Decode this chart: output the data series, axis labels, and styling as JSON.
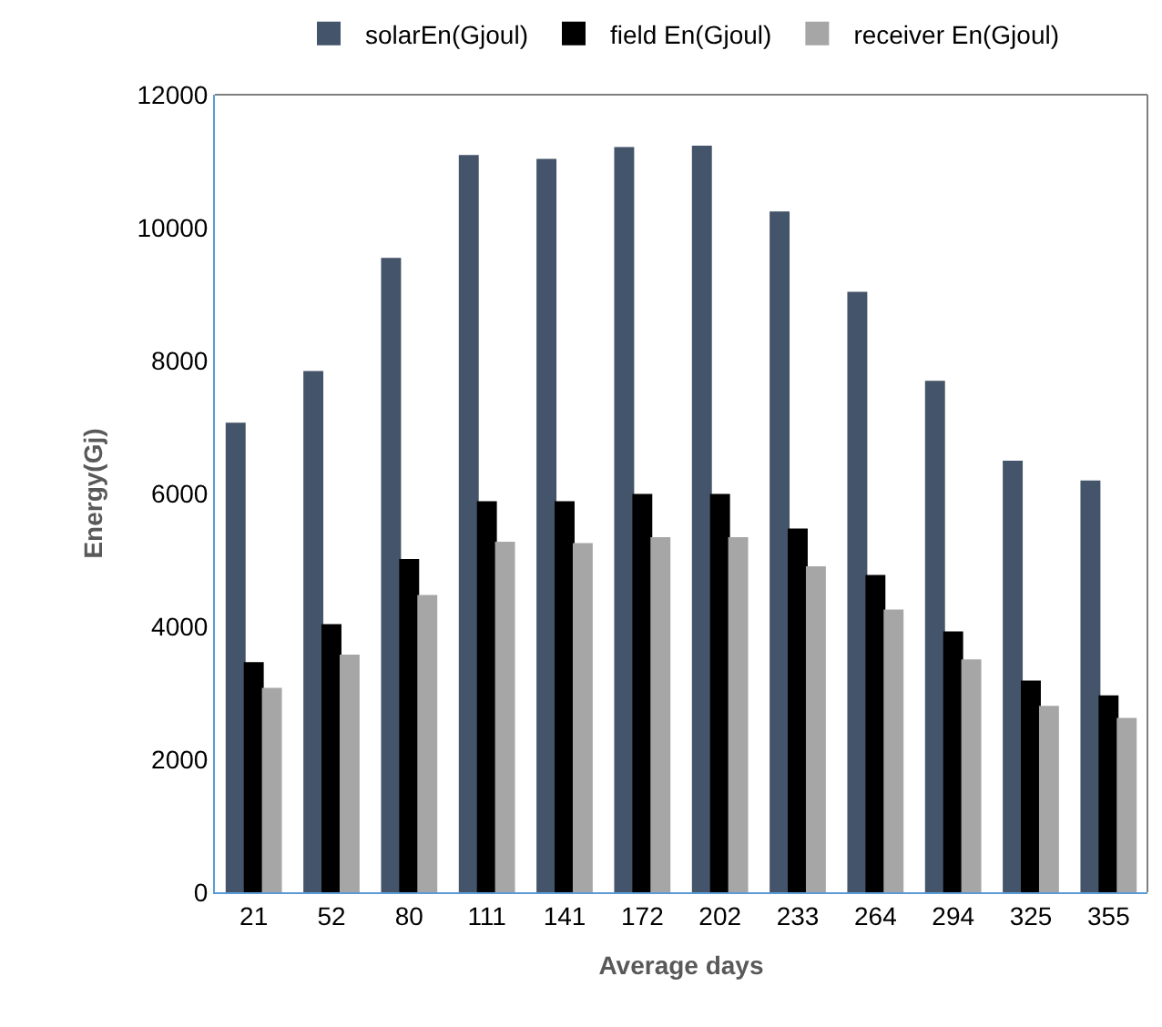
{
  "chart_data": {
    "type": "bar",
    "xlabel": "Average days",
    "ylabel": "Energy(Gj)",
    "categories": [
      "21",
      "52",
      "80",
      "111",
      "141",
      "172",
      "202",
      "233",
      "264",
      "294",
      "325",
      "355"
    ],
    "series": [
      {
        "name": "solarEn(Gjoul)",
        "color": "#44546a",
        "values": [
          7050,
          7830,
          9530,
          11080,
          11020,
          11200,
          11220,
          10230,
          9020,
          7680,
          6480,
          6180
        ]
      },
      {
        "name": "field En(Gjoul)",
        "color": "#000000",
        "values": [
          3450,
          4020,
          5000,
          5870,
          5870,
          5980,
          5980,
          5460,
          4760,
          3910,
          3170,
          2950
        ]
      },
      {
        "name": "receiver En(Gjoul)",
        "color": "#a6a6a6",
        "values": [
          3060,
          3560,
          4460,
          5260,
          5240,
          5330,
          5330,
          4890,
          4240,
          3490,
          2790,
          2610
        ]
      }
    ],
    "ylim": [
      0,
      12000
    ],
    "yticks": [
      0,
      2000,
      4000,
      6000,
      8000,
      10000,
      12000
    ],
    "legend": "top"
  }
}
